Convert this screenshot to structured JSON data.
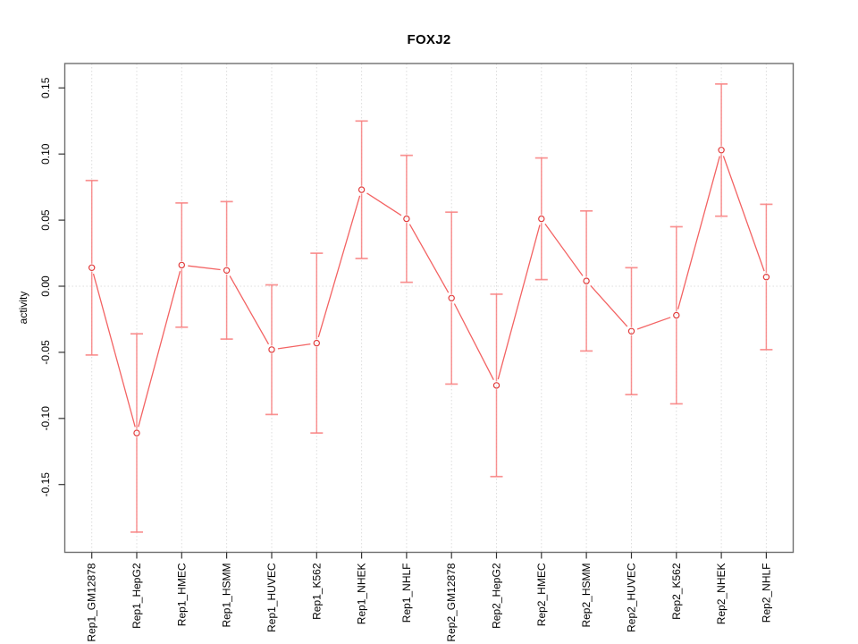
{
  "chart_data": {
    "type": "line",
    "title": "FOXJ2",
    "ylabel": "activity",
    "xlabel": "",
    "marker": "open-circle",
    "error_bars": true,
    "legend": null,
    "categories": [
      "Rep1_GM12878",
      "Rep1_HepG2",
      "Rep1_HMEC",
      "Rep1_HSMM",
      "Rep1_HUVEC",
      "Rep1_K562",
      "Rep1_NHEK",
      "Rep1_NHLF",
      "Rep2_GM12878",
      "Rep2_HepG2",
      "Rep2_HMEC",
      "Rep2_HSMM",
      "Rep2_HUVEC",
      "Rep2_K562",
      "Rep2_NHEK",
      "Rep2_NHLF"
    ],
    "series": [
      {
        "name": "activity",
        "values": [
          0.014,
          -0.111,
          0.016,
          0.012,
          -0.048,
          -0.043,
          0.073,
          0.051,
          -0.009,
          -0.075,
          0.051,
          0.004,
          -0.034,
          -0.022,
          0.103,
          0.007
        ],
        "upper": [
          0.08,
          -0.036,
          0.063,
          0.064,
          0.001,
          0.025,
          0.125,
          0.099,
          0.056,
          -0.006,
          0.097,
          0.057,
          0.014,
          0.045,
          0.153,
          0.062
        ],
        "lower": [
          -0.052,
          -0.186,
          -0.031,
          -0.04,
          -0.097,
          -0.111,
          0.021,
          0.003,
          -0.074,
          -0.144,
          0.005,
          -0.049,
          -0.082,
          -0.089,
          0.053,
          -0.048
        ]
      }
    ],
    "y_axis": {
      "ticks": [
        0.15,
        0.1,
        0.05,
        0.0,
        -0.05,
        -0.1,
        -0.15
      ],
      "tick_labels": [
        "0.15",
        "0.10",
        "0.05",
        "0.00",
        "-0.05",
        "-0.10",
        "-0.15"
      ],
      "ylim": [
        -0.2,
        0.17
      ]
    },
    "grid": {
      "vertical": "dotted line at every category",
      "horizontal": "dotted line at y=0 only"
    },
    "colors": {
      "line": "#f25252",
      "point": "#e23c3c",
      "error_bar": "#f87f7f",
      "grid": "#dcdcdc",
      "frame": "#6e6e6e",
      "tick": "#333333",
      "text": "#000000"
    }
  }
}
